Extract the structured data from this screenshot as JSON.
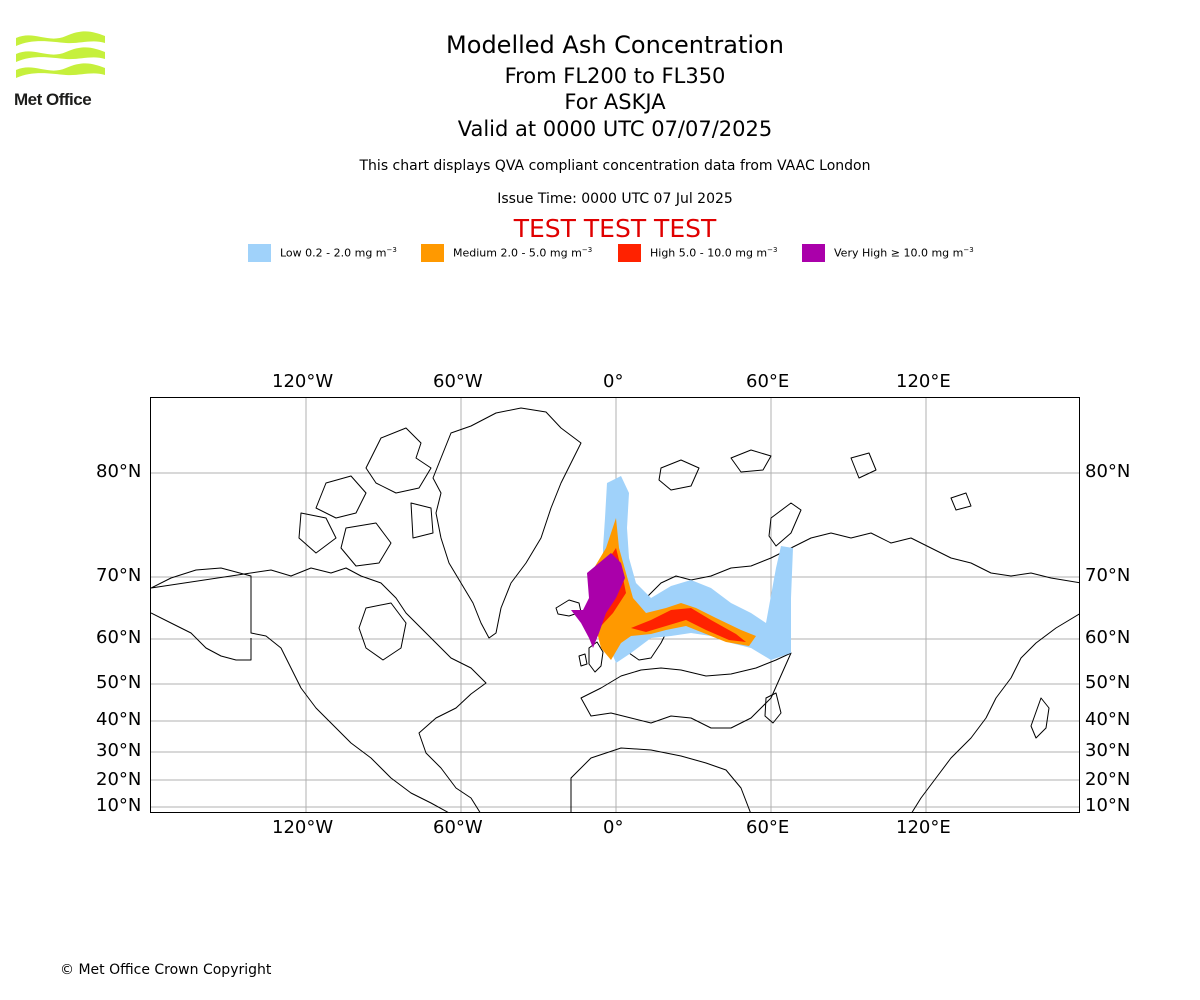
{
  "header": {
    "logo_text": "Met Office",
    "title": "Modelled Ash Concentration",
    "flight_levels": "From FL200 to FL350",
    "volcano": "For ASKJA",
    "valid_time": "Valid at 0000 UTC 07/07/2025",
    "subtitle": "This chart displays QVA compliant concentration data from VAAC London",
    "issue_time": "Issue Time: 0000 UTC 07 Jul 2025",
    "test_banner": "TEST TEST TEST"
  },
  "legend": [
    {
      "label": "Low 0.2 - 2.0 mg m",
      "unit_exp": "−3",
      "color": "#a0d2fa"
    },
    {
      "label": "Medium 2.0 - 5.0 mg m",
      "unit_exp": "−3",
      "color": "#ff9900"
    },
    {
      "label": "High 5.0 - 10.0 mg m",
      "unit_exp": "−3",
      "color": "#ff2200"
    },
    {
      "label": "Very High ≥ 10.0 mg m",
      "unit_exp": "−3",
      "color": "#aa00aa"
    }
  ],
  "map": {
    "lon_ticks": [
      "120°W",
      "60°W",
      "0°",
      "60°E",
      "120°E"
    ],
    "lat_ticks": [
      "80°N",
      "70°N",
      "60°N",
      "50°N",
      "40°N",
      "30°N",
      "20°N",
      "10°N"
    ],
    "gridlines": true,
    "colors": {
      "low": "#a0d2fa",
      "medium": "#ff9900",
      "high": "#ff2200",
      "very_high": "#aa00aa",
      "grid": "#b0b0b0",
      "coast": "#000000"
    }
  },
  "footer": {
    "copyright": "© Met Office Crown Copyright"
  }
}
